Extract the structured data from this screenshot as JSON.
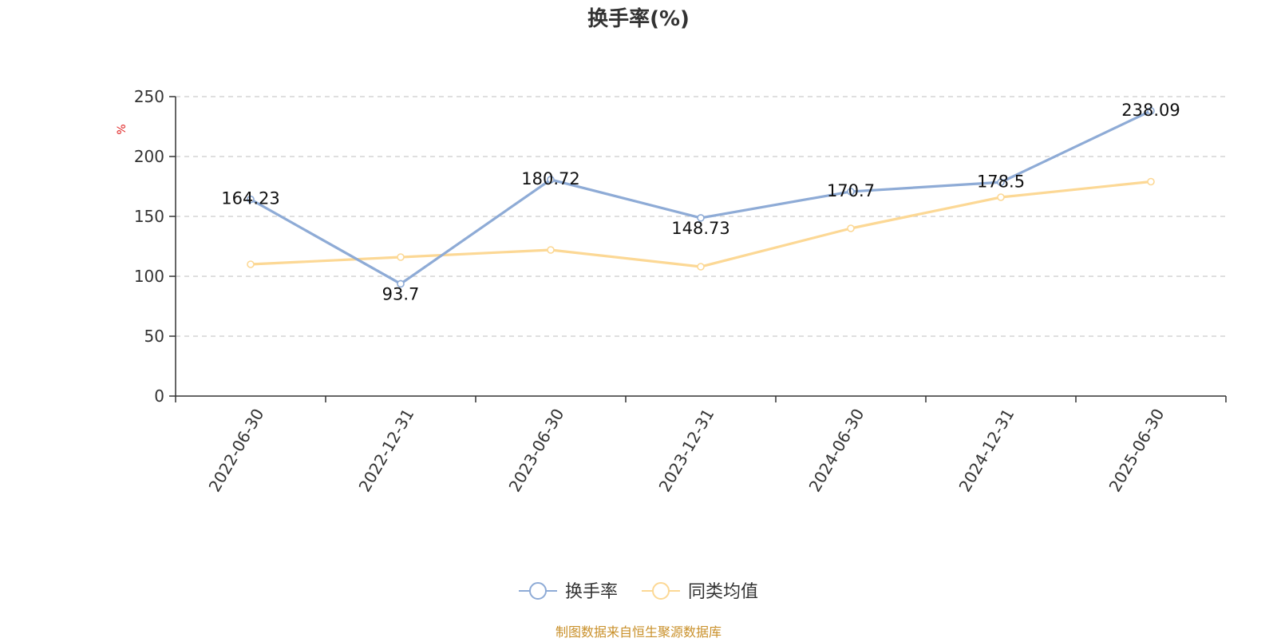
{
  "title": "换手率(%)",
  "unit_label": "%",
  "source": "制图数据来自恒生聚源数据库",
  "colors": {
    "series_main": "#8eabd6",
    "series_avg": "#fcd895",
    "unit": "#e02020",
    "source": "#c9902a",
    "axis": "#333333",
    "grid": "#cccccc"
  },
  "chart_data": {
    "type": "line",
    "title": "换手率(%)",
    "ylabel": "%",
    "xlabel": "",
    "categories": [
      "2022-06-30",
      "2022-12-31",
      "2023-06-30",
      "2023-12-31",
      "2024-06-30",
      "2024-12-31",
      "2025-06-30"
    ],
    "ylim": [
      0,
      250
    ],
    "yticks": [
      0,
      50,
      100,
      150,
      200,
      250
    ],
    "grid": true,
    "legend_position": "bottom-center",
    "series": [
      {
        "name": "换手率",
        "values": [
          164.23,
          93.7,
          180.72,
          148.73,
          170.7,
          178.5,
          238.09
        ],
        "data_labels": [
          "164.23",
          "93.7",
          "180.72",
          "148.73",
          "170.7",
          "178.5",
          "238.09"
        ],
        "color": "#8eabd6"
      },
      {
        "name": "同类均值",
        "values": [
          110,
          116,
          122,
          108,
          140,
          166,
          179
        ],
        "color": "#fcd895"
      }
    ]
  }
}
